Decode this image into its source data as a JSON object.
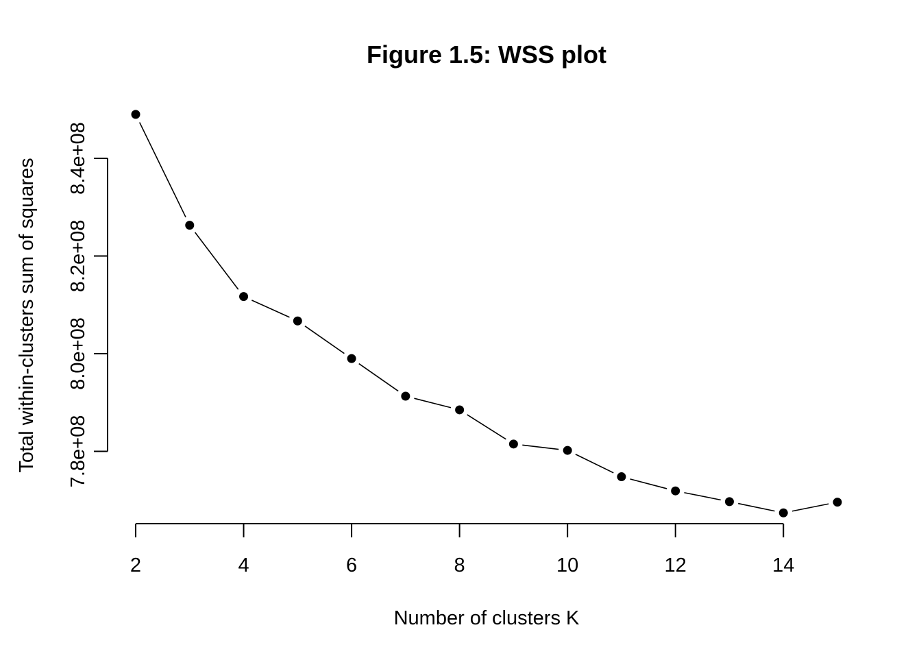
{
  "chart_data": {
    "type": "line",
    "title": "Figure 1.5: WSS plot",
    "xlabel": "Number of clusters K",
    "ylabel": "Total within-clusters sum of squares",
    "x": [
      2,
      3,
      4,
      5,
      6,
      7,
      8,
      9,
      10,
      11,
      12,
      13,
      14,
      15
    ],
    "series": [
      {
        "values": [
          849000000,
          826300000,
          811700000,
          806700000,
          799000000,
          791300000,
          788500000,
          781500000,
          780200000,
          774800000,
          771900000,
          769700000,
          767400000,
          769600000
        ]
      }
    ],
    "xticks": [
      2,
      4,
      6,
      8,
      10,
      12,
      14
    ],
    "xtick_labels": [
      "2",
      "4",
      "6",
      "8",
      "10",
      "12",
      "14"
    ],
    "yticks": [
      780000000,
      800000000,
      820000000,
      840000000
    ],
    "ytick_labels": [
      "7.8e+08",
      "8.0e+08",
      "8.2e+08",
      "8.4e+08"
    ],
    "xlim": [
      2,
      15
    ],
    "ylim": [
      768000000,
      848000000
    ],
    "grid": false,
    "legend": "none",
    "line_style": "b",
    "color": "#000000"
  }
}
